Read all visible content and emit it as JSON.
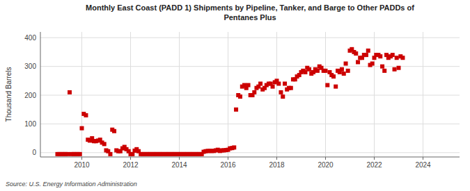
{
  "chart_data": {
    "type": "scatter",
    "title": "Monthly East Coast (PADD 1) Shipments by Pipeline, Tanker, and Barge to Other PADDs of\nPentanes Plus",
    "ylabel": "Thousand Barrels",
    "source": "Source: U.S. Energy Information Administration",
    "color": "#cc0000",
    "marker": "square",
    "grid": true,
    "xlim": [
      2008.3,
      2025.5
    ],
    "xticks": [
      2010,
      2012,
      2014,
      2016,
      2018,
      2020,
      2022,
      2024
    ],
    "ylim": [
      -15,
      420
    ],
    "yticks": [
      0,
      100,
      200,
      300,
      400
    ],
    "x": [
      2009.0,
      2009.08,
      2009.17,
      2009.25,
      2009.33,
      2009.42,
      2009.5,
      2009.58,
      2009.67,
      2009.75,
      2009.83,
      2009.92,
      2010.0,
      2010.08,
      2010.17,
      2010.25,
      2010.33,
      2010.42,
      2010.5,
      2010.58,
      2010.67,
      2010.75,
      2010.83,
      2010.92,
      2011.0,
      2011.08,
      2011.17,
      2011.25,
      2011.33,
      2011.42,
      2011.5,
      2011.58,
      2011.67,
      2011.75,
      2011.83,
      2011.92,
      2012.0,
      2012.08,
      2012.17,
      2012.25,
      2012.33,
      2012.42,
      2012.5,
      2012.58,
      2012.67,
      2012.75,
      2012.83,
      2012.92,
      2013.0,
      2013.08,
      2013.17,
      2013.25,
      2013.33,
      2013.42,
      2013.5,
      2013.58,
      2013.67,
      2013.75,
      2013.83,
      2013.92,
      2014.0,
      2014.08,
      2014.17,
      2014.25,
      2014.33,
      2014.42,
      2014.5,
      2014.58,
      2014.67,
      2014.75,
      2014.83,
      2014.92,
      2015.0,
      2015.08,
      2015.17,
      2015.25,
      2015.33,
      2015.42,
      2015.5,
      2015.58,
      2015.67,
      2015.75,
      2015.83,
      2015.92,
      2016.0,
      2016.08,
      2016.17,
      2016.25,
      2016.33,
      2016.42,
      2016.5,
      2016.58,
      2016.67,
      2016.75,
      2016.83,
      2016.92,
      2017.0,
      2017.08,
      2017.17,
      2017.25,
      2017.33,
      2017.42,
      2017.5,
      2017.58,
      2017.67,
      2017.75,
      2017.83,
      2017.92,
      2018.0,
      2018.08,
      2018.17,
      2018.25,
      2018.33,
      2018.42,
      2018.5,
      2018.58,
      2018.67,
      2018.75,
      2018.83,
      2018.92,
      2019.0,
      2019.08,
      2019.17,
      2019.25,
      2019.33,
      2019.42,
      2019.5,
      2019.58,
      2019.67,
      2019.75,
      2019.83,
      2019.92,
      2020.0,
      2020.08,
      2020.17,
      2020.25,
      2020.33,
      2020.42,
      2020.5,
      2020.58,
      2020.67,
      2020.75,
      2020.83,
      2020.92,
      2021.0,
      2021.08,
      2021.17,
      2021.25,
      2021.33,
      2021.42,
      2021.5,
      2021.58,
      2021.67,
      2021.75,
      2021.83,
      2021.92,
      2022.0,
      2022.08,
      2022.17,
      2022.25,
      2022.33,
      2022.42,
      2022.5,
      2022.58,
      2022.67,
      2022.75,
      2022.83,
      2022.92,
      2023.0,
      2023.08,
      2023.17
    ],
    "values": [
      -5,
      -5,
      -5,
      -5,
      -5,
      -5,
      210,
      -5,
      -5,
      -5,
      -5,
      -5,
      85,
      135,
      130,
      45,
      42,
      50,
      40,
      40,
      42,
      45,
      35,
      30,
      8,
      5,
      -5,
      80,
      75,
      8,
      5,
      5,
      15,
      20,
      12,
      5,
      -5,
      -5,
      7,
      12,
      5,
      -5,
      -5,
      -5,
      -5,
      -5,
      -5,
      -5,
      -5,
      -5,
      -5,
      -5,
      -5,
      -5,
      -5,
      -5,
      -5,
      -5,
      -5,
      -5,
      -5,
      -5,
      -5,
      -5,
      -5,
      -5,
      -5,
      -5,
      -5,
      -5,
      -5,
      -5,
      3,
      5,
      6,
      6,
      6,
      6,
      8,
      10,
      6,
      8,
      8,
      9,
      10,
      15,
      16,
      18,
      150,
      200,
      195,
      230,
      235,
      225,
      235,
      200,
      200,
      210,
      225,
      230,
      240,
      220,
      225,
      235,
      240,
      240,
      230,
      245,
      250,
      240,
      210,
      195,
      240,
      220,
      225,
      225,
      255,
      255,
      265,
      270,
      280,
      285,
      280,
      295,
      290,
      275,
      280,
      290,
      285,
      300,
      295,
      285,
      285,
      235,
      280,
      270,
      265,
      230,
      285,
      280,
      290,
      275,
      310,
      285,
      355,
      360,
      350,
      345,
      315,
      330,
      330,
      340,
      340,
      355,
      305,
      310,
      330,
      340,
      340,
      335,
      300,
      285,
      340,
      330,
      335,
      340,
      290,
      330,
      295,
      335,
      330
    ]
  }
}
